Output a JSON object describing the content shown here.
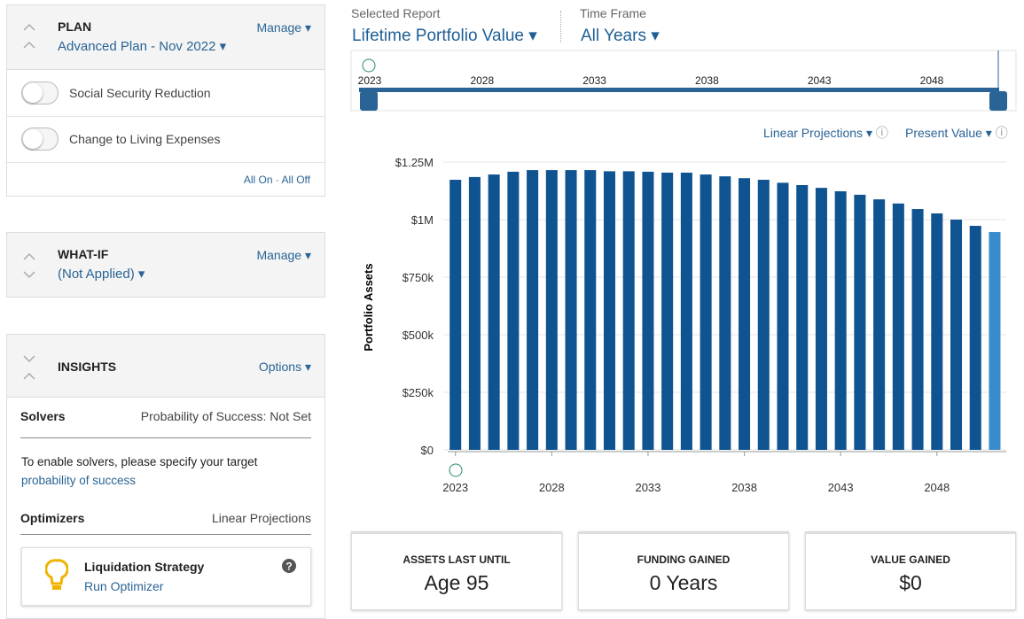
{
  "plan": {
    "title": "PLAN",
    "name": "Advanced Plan - Nov 2022",
    "manage": "Manage",
    "toggles": [
      "Social Security Reduction",
      "Change to Living Expenses"
    ],
    "all_on": "All On",
    "all_off": "All Off"
  },
  "whatif": {
    "title": "WHAT-IF",
    "name": "(Not Applied)",
    "manage": "Manage"
  },
  "insights": {
    "title": "INSIGHTS",
    "options": "Options",
    "solvers": {
      "label": "Solvers",
      "status": "Probability of Success: Not Set",
      "text": "To enable solvers, please specify your target",
      "link": "probability of success"
    },
    "optimizers": {
      "label": "Optimizers",
      "status": "Linear Projections",
      "card_title": "Liquidation Strategy",
      "card_link": "Run Optimizer"
    }
  },
  "report": {
    "selected_label": "Selected Report",
    "selected": "Lifetime Portfolio Value",
    "timeframe_label": "Time Frame",
    "timeframe": "All Years",
    "projection": "Linear Projections",
    "value_mode": "Present Value"
  },
  "timeline": {
    "ticks": [
      2023,
      2028,
      2033,
      2038,
      2043,
      2048
    ]
  },
  "chart_data": {
    "type": "bar",
    "ylabel": "Portfolio Assets",
    "x": [
      2023,
      2024,
      2025,
      2026,
      2027,
      2028,
      2029,
      2030,
      2031,
      2032,
      2033,
      2034,
      2035,
      2036,
      2037,
      2038,
      2039,
      2040,
      2041,
      2042,
      2043,
      2044,
      2045,
      2046,
      2047,
      2048,
      2049,
      2050,
      2051
    ],
    "values": [
      1173000,
      1185000,
      1196000,
      1208000,
      1215000,
      1215000,
      1215000,
      1215000,
      1210000,
      1210000,
      1208000,
      1204000,
      1204000,
      1196000,
      1188000,
      1180000,
      1173000,
      1160000,
      1150000,
      1138000,
      1123000,
      1108000,
      1088000,
      1070000,
      1046000,
      1027000,
      1000000,
      973000,
      946000
    ],
    "colors": [
      "#0f5391",
      "#0f5391",
      "#0f5391",
      "#0f5391",
      "#0f5391",
      "#0f5391",
      "#0f5391",
      "#0f5391",
      "#0f5391",
      "#0f5391",
      "#0f5391",
      "#0f5391",
      "#0f5391",
      "#0f5391",
      "#0f5391",
      "#0f5391",
      "#0f5391",
      "#0f5391",
      "#0f5391",
      "#0f5391",
      "#0f5391",
      "#0f5391",
      "#0f5391",
      "#0f5391",
      "#0f5391",
      "#0f5391",
      "#0f5391",
      "#0f5391",
      "#3a8bcc"
    ],
    "xlim": [
      2022.6,
      2051.6
    ],
    "xticks": [
      2023,
      2028,
      2033,
      2038,
      2043,
      2048
    ],
    "ylim": [
      0,
      1250000
    ],
    "yticks": [
      {
        "value": 0,
        "label": "$0"
      },
      {
        "value": 250000,
        "label": "$250k"
      },
      {
        "value": 500000,
        "label": "$500k"
      },
      {
        "value": 750000,
        "label": "$750k"
      },
      {
        "value": 1000000,
        "label": "$1M"
      },
      {
        "value": 1250000,
        "label": "$1.25M"
      }
    ],
    "grid": true
  },
  "summary": [
    {
      "label": "ASSETS LAST UNTIL",
      "value": "Age 95"
    },
    {
      "label": "FUNDING GAINED",
      "value": "0 Years"
    },
    {
      "label": "VALUE GAINED",
      "value": "$0"
    }
  ]
}
